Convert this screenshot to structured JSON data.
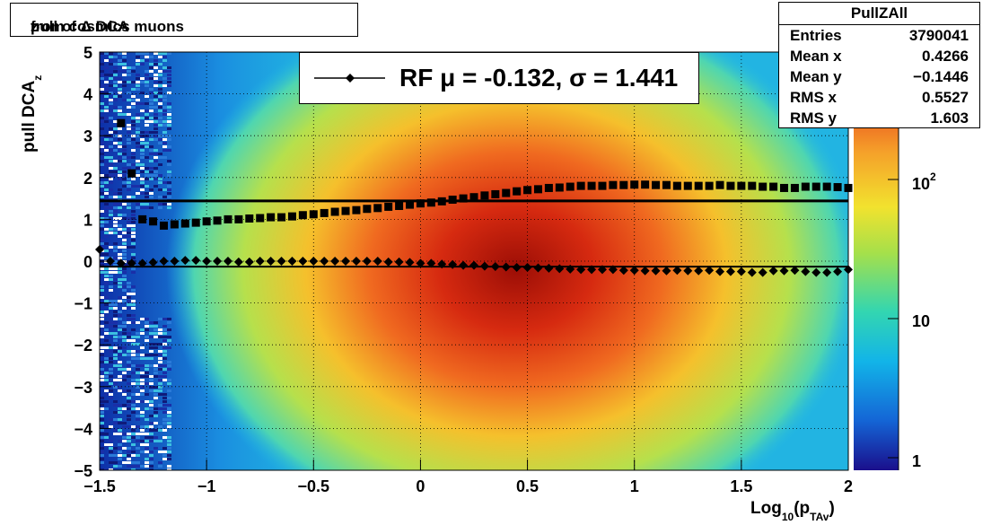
{
  "title": {
    "pre": "pull of Δ DCA",
    "sub": "z",
    "post": " from cosmics muons"
  },
  "stats": {
    "name": "PullZAll",
    "rows": [
      {
        "label": "Entries",
        "value": "3790041"
      },
      {
        "label": "Mean x",
        "value": "0.4266"
      },
      {
        "label": "Mean y",
        "value": "−0.1446"
      },
      {
        "label": "RMS x",
        "value": "0.5527"
      },
      {
        "label": "RMS y",
        "value": "1.603"
      }
    ]
  },
  "legend": {
    "text": "RF μ = -0.132, σ =   1.441"
  },
  "ylabel": {
    "main": "pull DCA",
    "sub": "z"
  },
  "xlabel": {
    "pre": "Log",
    "sub1": "10",
    "mid": "(p",
    "sub2": "TAv",
    "post": ")"
  },
  "colors": {
    "sigma_line": "#000000",
    "markers": "#000000"
  },
  "chart_data": {
    "type": "heatmap",
    "xlim": [
      -1.5,
      2
    ],
    "ylim": [
      -5,
      5
    ],
    "x_ticks": [
      "−1.5",
      "−1",
      "−0.5",
      "0",
      "0.5",
      "1",
      "1.5",
      "2"
    ],
    "y_ticks": [
      "5",
      "4",
      "3",
      "2",
      "1",
      "0",
      "−1",
      "−2",
      "−3",
      "−4",
      "−5"
    ],
    "grid": true,
    "z_scale": "log",
    "z_ticks": [
      "1",
      "10",
      "10^2"
    ],
    "sigma_line_y": 1.441,
    "mean_line_y": -0.132,
    "sigma_points": {
      "x": [
        -1.4,
        -1.35,
        -1.3,
        -1.25,
        -1.2,
        -1.15,
        -1.1,
        -1.05,
        -1.0,
        -0.95,
        -0.9,
        -0.85,
        -0.8,
        -0.75,
        -0.7,
        -0.65,
        -0.6,
        -0.55,
        -0.5,
        -0.45,
        -0.4,
        -0.35,
        -0.3,
        -0.25,
        -0.2,
        -0.15,
        -0.1,
        -0.05,
        0.0,
        0.05,
        0.1,
        0.15,
        0.2,
        0.25,
        0.3,
        0.35,
        0.4,
        0.45,
        0.5,
        0.55,
        0.6,
        0.65,
        0.7,
        0.75,
        0.8,
        0.85,
        0.9,
        0.95,
        1.0,
        1.05,
        1.1,
        1.15,
        1.2,
        1.25,
        1.3,
        1.35,
        1.4,
        1.45,
        1.5,
        1.55,
        1.6,
        1.65,
        1.7,
        1.75,
        1.8,
        1.85,
        1.9,
        1.95,
        2.0
      ],
      "y": [
        3.3,
        2.1,
        1.0,
        0.95,
        0.85,
        0.88,
        0.9,
        0.92,
        0.95,
        0.97,
        1.0,
        1.0,
        1.02,
        1.03,
        1.05,
        1.05,
        1.07,
        1.1,
        1.12,
        1.15,
        1.18,
        1.2,
        1.22,
        1.25,
        1.27,
        1.3,
        1.32,
        1.35,
        1.38,
        1.4,
        1.43,
        1.47,
        1.5,
        1.53,
        1.57,
        1.6,
        1.63,
        1.67,
        1.7,
        1.72,
        1.75,
        1.76,
        1.78,
        1.8,
        1.8,
        1.8,
        1.82,
        1.82,
        1.83,
        1.83,
        1.82,
        1.82,
        1.8,
        1.8,
        1.8,
        1.8,
        1.82,
        1.8,
        1.8,
        1.8,
        1.78,
        1.78,
        1.75,
        1.75,
        1.78,
        1.78,
        1.78,
        1.77,
        1.75
      ]
    },
    "mean_points": {
      "x": [
        -1.5,
        -1.45,
        -1.4,
        -1.35,
        -1.3,
        -1.25,
        -1.2,
        -1.15,
        -1.1,
        -1.05,
        -1.0,
        -0.95,
        -0.9,
        -0.85,
        -0.8,
        -0.75,
        -0.7,
        -0.65,
        -0.6,
        -0.55,
        -0.5,
        -0.45,
        -0.4,
        -0.35,
        -0.3,
        -0.25,
        -0.2,
        -0.15,
        -0.1,
        -0.05,
        0.0,
        0.05,
        0.1,
        0.15,
        0.2,
        0.25,
        0.3,
        0.35,
        0.4,
        0.45,
        0.5,
        0.55,
        0.6,
        0.65,
        0.7,
        0.75,
        0.8,
        0.85,
        0.9,
        0.95,
        1.0,
        1.05,
        1.1,
        1.15,
        1.2,
        1.25,
        1.3,
        1.35,
        1.4,
        1.45,
        1.5,
        1.55,
        1.6,
        1.65,
        1.7,
        1.75,
        1.8,
        1.85,
        1.9,
        1.95,
        2.0
      ],
      "y": [
        0.28,
        0.0,
        -0.05,
        -0.05,
        -0.05,
        -0.03,
        0.0,
        0.0,
        0.02,
        0.02,
        0.0,
        0.0,
        0.0,
        -0.02,
        -0.02,
        0.0,
        0.0,
        0.0,
        0.0,
        0.0,
        0.0,
        0.0,
        0.0,
        0.0,
        0.0,
        0.0,
        0.0,
        -0.02,
        -0.02,
        -0.03,
        -0.05,
        -0.05,
        -0.07,
        -0.08,
        -0.1,
        -0.1,
        -0.12,
        -0.13,
        -0.14,
        -0.15,
        -0.15,
        -0.16,
        -0.17,
        -0.18,
        -0.19,
        -0.2,
        -0.2,
        -0.2,
        -0.2,
        -0.22,
        -0.22,
        -0.23,
        -0.23,
        -0.23,
        -0.22,
        -0.23,
        -0.23,
        -0.22,
        -0.25,
        -0.25,
        -0.25,
        -0.27,
        -0.27,
        -0.23,
        -0.23,
        -0.22,
        -0.25,
        -0.27,
        -0.27,
        -0.25,
        -0.2
      ]
    }
  }
}
